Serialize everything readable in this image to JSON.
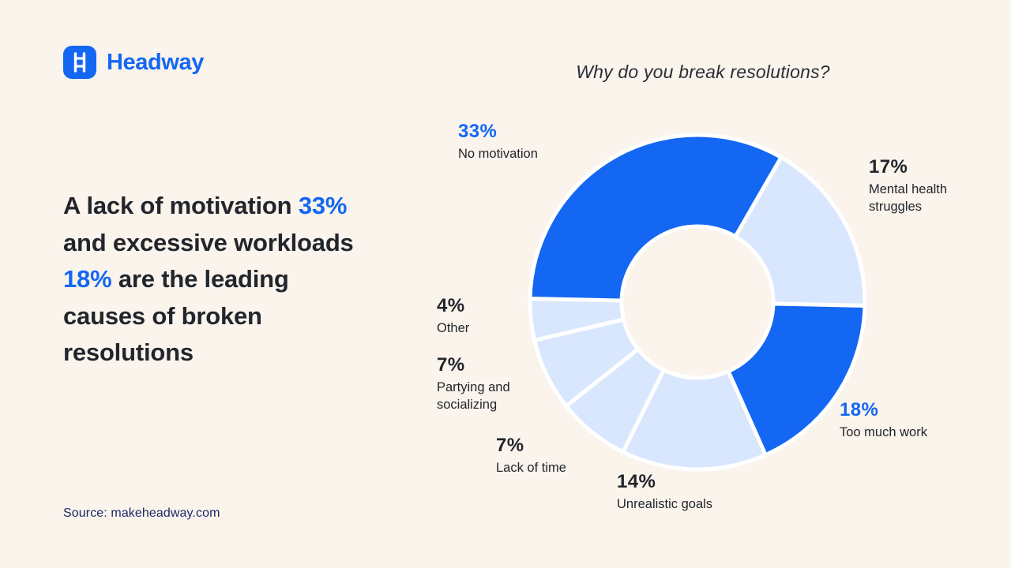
{
  "brand": {
    "name": "Headway"
  },
  "title": "Why do you break resolutions?",
  "headline": {
    "parts": [
      {
        "text": "A lack of motivation ",
        "accent": false
      },
      {
        "text": "33%",
        "accent": true
      },
      {
        "text": " and excessive workloads ",
        "accent": false
      },
      {
        "text": "18%",
        "accent": true
      },
      {
        "text": " are the leading causes of broken resolutions",
        "accent": false
      }
    ]
  },
  "source": "Source: makeheadway.com",
  "colors": {
    "background": "#FAF4ED",
    "primary": "#1467F2",
    "light_segment": "#D8E7FD",
    "text_dark": "#22252B",
    "source_text": "#1D2A66"
  },
  "chart_data": {
    "type": "pie",
    "subtype": "donut",
    "title": "Why do you break resolutions?",
    "start_angle_deg": 30,
    "direction": "clockwise",
    "colors": {
      "primary": "#1467F2",
      "light": "#D8E7FD"
    },
    "segments": [
      {
        "label": "Mental health struggles",
        "value": 17,
        "value_label": "17%",
        "color_key": "light"
      },
      {
        "label": "Too much work",
        "value": 18,
        "value_label": "18%",
        "color_key": "primary"
      },
      {
        "label": "Unrealistic goals",
        "value": 14,
        "value_label": "14%",
        "color_key": "light"
      },
      {
        "label": "Lack of time",
        "value": 7,
        "value_label": "7%",
        "color_key": "light"
      },
      {
        "label": "Partying and socializing",
        "value": 7,
        "value_label": "7%",
        "color_key": "light"
      },
      {
        "label": "Other",
        "value": 4,
        "value_label": "4%",
        "color_key": "light"
      },
      {
        "label": "No motivation",
        "value": 33,
        "value_label": "33%",
        "color_key": "primary"
      }
    ]
  }
}
